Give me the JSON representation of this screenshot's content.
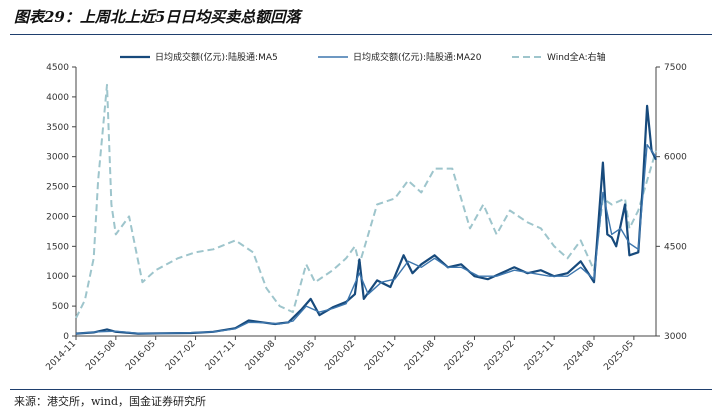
{
  "header": {
    "title": "图表29：上周北上近5日日均买卖总额回落"
  },
  "footer": {
    "source": "来源：港交所，wind，国金证券研究所"
  },
  "colors": {
    "ma5": "#174a7c",
    "ma20": "#3d76ad",
    "winda": "#9ec5cc",
    "axis": "#444444",
    "rule": "#1f3f6e"
  },
  "chart_data": {
    "type": "line",
    "grid": false,
    "legend_position": "top",
    "x_tick_labels": [
      "2014-11",
      "2015-08",
      "2016-05",
      "2017-02",
      "2017-11",
      "2018-08",
      "2019-05",
      "2020-02",
      "2020-11",
      "2021-08",
      "2022-05",
      "2023-02",
      "2023-11",
      "2024-08",
      "2025-05"
    ],
    "ylim_left": [
      0,
      4500
    ],
    "yticks_left": [
      0,
      500,
      1000,
      1500,
      2000,
      2500,
      3000,
      3500,
      4000,
      4500
    ],
    "ylim_right": [
      3000,
      7500
    ],
    "yticks_right": [
      3000,
      4500,
      6000,
      7500
    ],
    "series": [
      {
        "name": "日均成交额(亿元):陆股通:MA5",
        "axis": "left",
        "style": "solid-thick",
        "points": [
          [
            "2014-11",
            40
          ],
          [
            "2015-03",
            60
          ],
          [
            "2015-06",
            110
          ],
          [
            "2015-08",
            70
          ],
          [
            "2016-01",
            40
          ],
          [
            "2016-06",
            45
          ],
          [
            "2017-01",
            50
          ],
          [
            "2017-06",
            70
          ],
          [
            "2017-11",
            130
          ],
          [
            "2018-02",
            260
          ],
          [
            "2018-05",
            230
          ],
          [
            "2018-08",
            200
          ],
          [
            "2018-11",
            230
          ],
          [
            "2019-02",
            450
          ],
          [
            "2019-04",
            620
          ],
          [
            "2019-06",
            350
          ],
          [
            "2019-09",
            480
          ],
          [
            "2019-12",
            570
          ],
          [
            "2020-02",
            700
          ],
          [
            "2020-03",
            1280
          ],
          [
            "2020-04",
            620
          ],
          [
            "2020-07",
            930
          ],
          [
            "2020-10",
            820
          ],
          [
            "2021-01",
            1350
          ],
          [
            "2021-03",
            1050
          ],
          [
            "2021-05",
            1200
          ],
          [
            "2021-08",
            1350
          ],
          [
            "2021-11",
            1150
          ],
          [
            "2022-02",
            1200
          ],
          [
            "2022-05",
            1000
          ],
          [
            "2022-08",
            950
          ],
          [
            "2022-11",
            1050
          ],
          [
            "2023-02",
            1150
          ],
          [
            "2023-05",
            1050
          ],
          [
            "2023-08",
            1100
          ],
          [
            "2023-11",
            1000
          ],
          [
            "2024-02",
            1050
          ],
          [
            "2024-05",
            1250
          ],
          [
            "2024-08",
            900
          ],
          [
            "2024-10",
            2900
          ],
          [
            "2024-11",
            1700
          ],
          [
            "2024-12",
            1650
          ],
          [
            "2025-01",
            1500
          ],
          [
            "2025-03",
            2200
          ],
          [
            "2025-04",
            1350
          ],
          [
            "2025-06",
            1400
          ],
          [
            "2025-07",
            2500
          ],
          [
            "2025-08",
            3850
          ],
          [
            "2025-09",
            3100
          ],
          [
            "2025-10",
            2950
          ]
        ]
      },
      {
        "name": "日均成交额(亿元):陆股通:MA20",
        "axis": "left",
        "style": "solid",
        "points": [
          [
            "2014-11",
            40
          ],
          [
            "2015-04",
            70
          ],
          [
            "2015-08",
            80
          ],
          [
            "2016-01",
            45
          ],
          [
            "2016-06",
            45
          ],
          [
            "2017-01",
            55
          ],
          [
            "2017-06",
            70
          ],
          [
            "2017-11",
            120
          ],
          [
            "2018-02",
            230
          ],
          [
            "2018-06",
            220
          ],
          [
            "2018-09",
            200
          ],
          [
            "2018-12",
            250
          ],
          [
            "2019-03",
            500
          ],
          [
            "2019-06",
            400
          ],
          [
            "2019-09",
            460
          ],
          [
            "2019-12",
            540
          ],
          [
            "2020-03",
            1050
          ],
          [
            "2020-05",
            700
          ],
          [
            "2020-08",
            900
          ],
          [
            "2020-11",
            950
          ],
          [
            "2021-02",
            1250
          ],
          [
            "2021-05",
            1150
          ],
          [
            "2021-08",
            1300
          ],
          [
            "2021-11",
            1150
          ],
          [
            "2022-02",
            1150
          ],
          [
            "2022-06",
            1000
          ],
          [
            "2022-10",
            1000
          ],
          [
            "2023-02",
            1100
          ],
          [
            "2023-06",
            1050
          ],
          [
            "2023-10",
            1000
          ],
          [
            "2024-02",
            1000
          ],
          [
            "2024-05",
            1150
          ],
          [
            "2024-08",
            950
          ],
          [
            "2024-10",
            2400
          ],
          [
            "2024-12",
            1700
          ],
          [
            "2025-02",
            1800
          ],
          [
            "2025-04",
            1550
          ],
          [
            "2025-06",
            1450
          ],
          [
            "2025-08",
            3200
          ],
          [
            "2025-10",
            3000
          ]
        ]
      },
      {
        "name": "Wind全A:右轴",
        "axis": "right",
        "style": "dashed",
        "points": [
          [
            "2014-11",
            3300
          ],
          [
            "2015-01",
            3600
          ],
          [
            "2015-03",
            4300
          ],
          [
            "2015-04",
            5600
          ],
          [
            "2015-06",
            7200
          ],
          [
            "2015-07",
            5200
          ],
          [
            "2015-08",
            4700
          ],
          [
            "2015-11",
            5000
          ],
          [
            "2016-02",
            3900
          ],
          [
            "2016-05",
            4100
          ],
          [
            "2016-10",
            4300
          ],
          [
            "2017-02",
            4400
          ],
          [
            "2017-06",
            4450
          ],
          [
            "2017-11",
            4600
          ],
          [
            "2018-03",
            4400
          ],
          [
            "2018-06",
            3800
          ],
          [
            "2018-09",
            3500
          ],
          [
            "2018-12",
            3400
          ],
          [
            "2019-03",
            4200
          ],
          [
            "2019-05",
            3900
          ],
          [
            "2019-09",
            4100
          ],
          [
            "2019-12",
            4300
          ],
          [
            "2020-02",
            4500
          ],
          [
            "2020-03",
            4200
          ],
          [
            "2020-07",
            5200
          ],
          [
            "2020-11",
            5300
          ],
          [
            "2021-02",
            5600
          ],
          [
            "2021-05",
            5400
          ],
          [
            "2021-08",
            5800
          ],
          [
            "2021-12",
            5800
          ],
          [
            "2022-04",
            4800
          ],
          [
            "2022-07",
            5200
          ],
          [
            "2022-10",
            4700
          ],
          [
            "2023-01",
            5100
          ],
          [
            "2023-05",
            4900
          ],
          [
            "2023-08",
            4800
          ],
          [
            "2023-11",
            4500
          ],
          [
            "2024-02",
            4300
          ],
          [
            "2024-05",
            4600
          ],
          [
            "2024-08",
            4100
          ],
          [
            "2024-10",
            5300
          ],
          [
            "2024-12",
            5200
          ],
          [
            "2025-03",
            5300
          ],
          [
            "2025-04",
            4800
          ],
          [
            "2025-06",
            5100
          ],
          [
            "2025-08",
            5600
          ],
          [
            "2025-10",
            6100
          ]
        ]
      }
    ]
  }
}
